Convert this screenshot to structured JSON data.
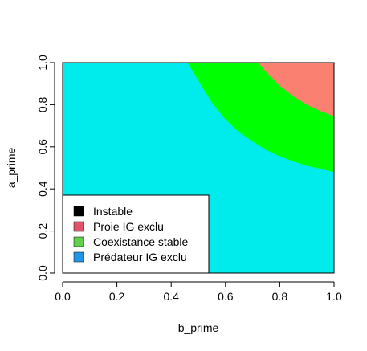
{
  "chart_data": {
    "type": "heatmap",
    "xlabel": "b_prime",
    "ylabel": "a_prime",
    "xlim": [
      0,
      1
    ],
    "ylim": [
      0,
      1
    ],
    "x_ticks": [
      "0.0",
      "0.2",
      "0.4",
      "0.6",
      "0.8",
      "1.0"
    ],
    "y_ticks": [
      "0.0",
      "0.2",
      "0.4",
      "0.6",
      "0.8",
      "1.0"
    ],
    "region_colors": {
      "predateur": "#00EBEB",
      "coexistence": "#00FF00",
      "proie": "#FA8072"
    },
    "boundaries": {
      "coexistence_lower": [
        {
          "b": 0.46,
          "a": 1.0
        },
        {
          "b": 0.5,
          "a": 0.915
        },
        {
          "b": 0.55,
          "a": 0.81
        },
        {
          "b": 0.6,
          "a": 0.73
        },
        {
          "b": 0.65,
          "a": 0.67
        },
        {
          "b": 0.7,
          "a": 0.625
        },
        {
          "b": 0.75,
          "a": 0.585
        },
        {
          "b": 0.8,
          "a": 0.555
        },
        {
          "b": 0.85,
          "a": 0.53
        },
        {
          "b": 0.9,
          "a": 0.51
        },
        {
          "b": 0.95,
          "a": 0.495
        },
        {
          "b": 1.0,
          "a": 0.48
        }
      ],
      "proie_lower": [
        {
          "b": 0.72,
          "a": 1.0
        },
        {
          "b": 0.75,
          "a": 0.955
        },
        {
          "b": 0.8,
          "a": 0.89
        },
        {
          "b": 0.85,
          "a": 0.84
        },
        {
          "b": 0.9,
          "a": 0.8
        },
        {
          "b": 0.95,
          "a": 0.77
        },
        {
          "b": 1.0,
          "a": 0.745
        }
      ]
    },
    "legend": {
      "placement": "bottom-left",
      "items": [
        {
          "label": "Instable",
          "color": "#000000"
        },
        {
          "label": "Proie IG exclu",
          "color": "#DF536B"
        },
        {
          "label": "Coexistance stable",
          "color": "#61D04F"
        },
        {
          "label": "Prédateur IG exclu",
          "color": "#2297E6"
        }
      ]
    }
  }
}
